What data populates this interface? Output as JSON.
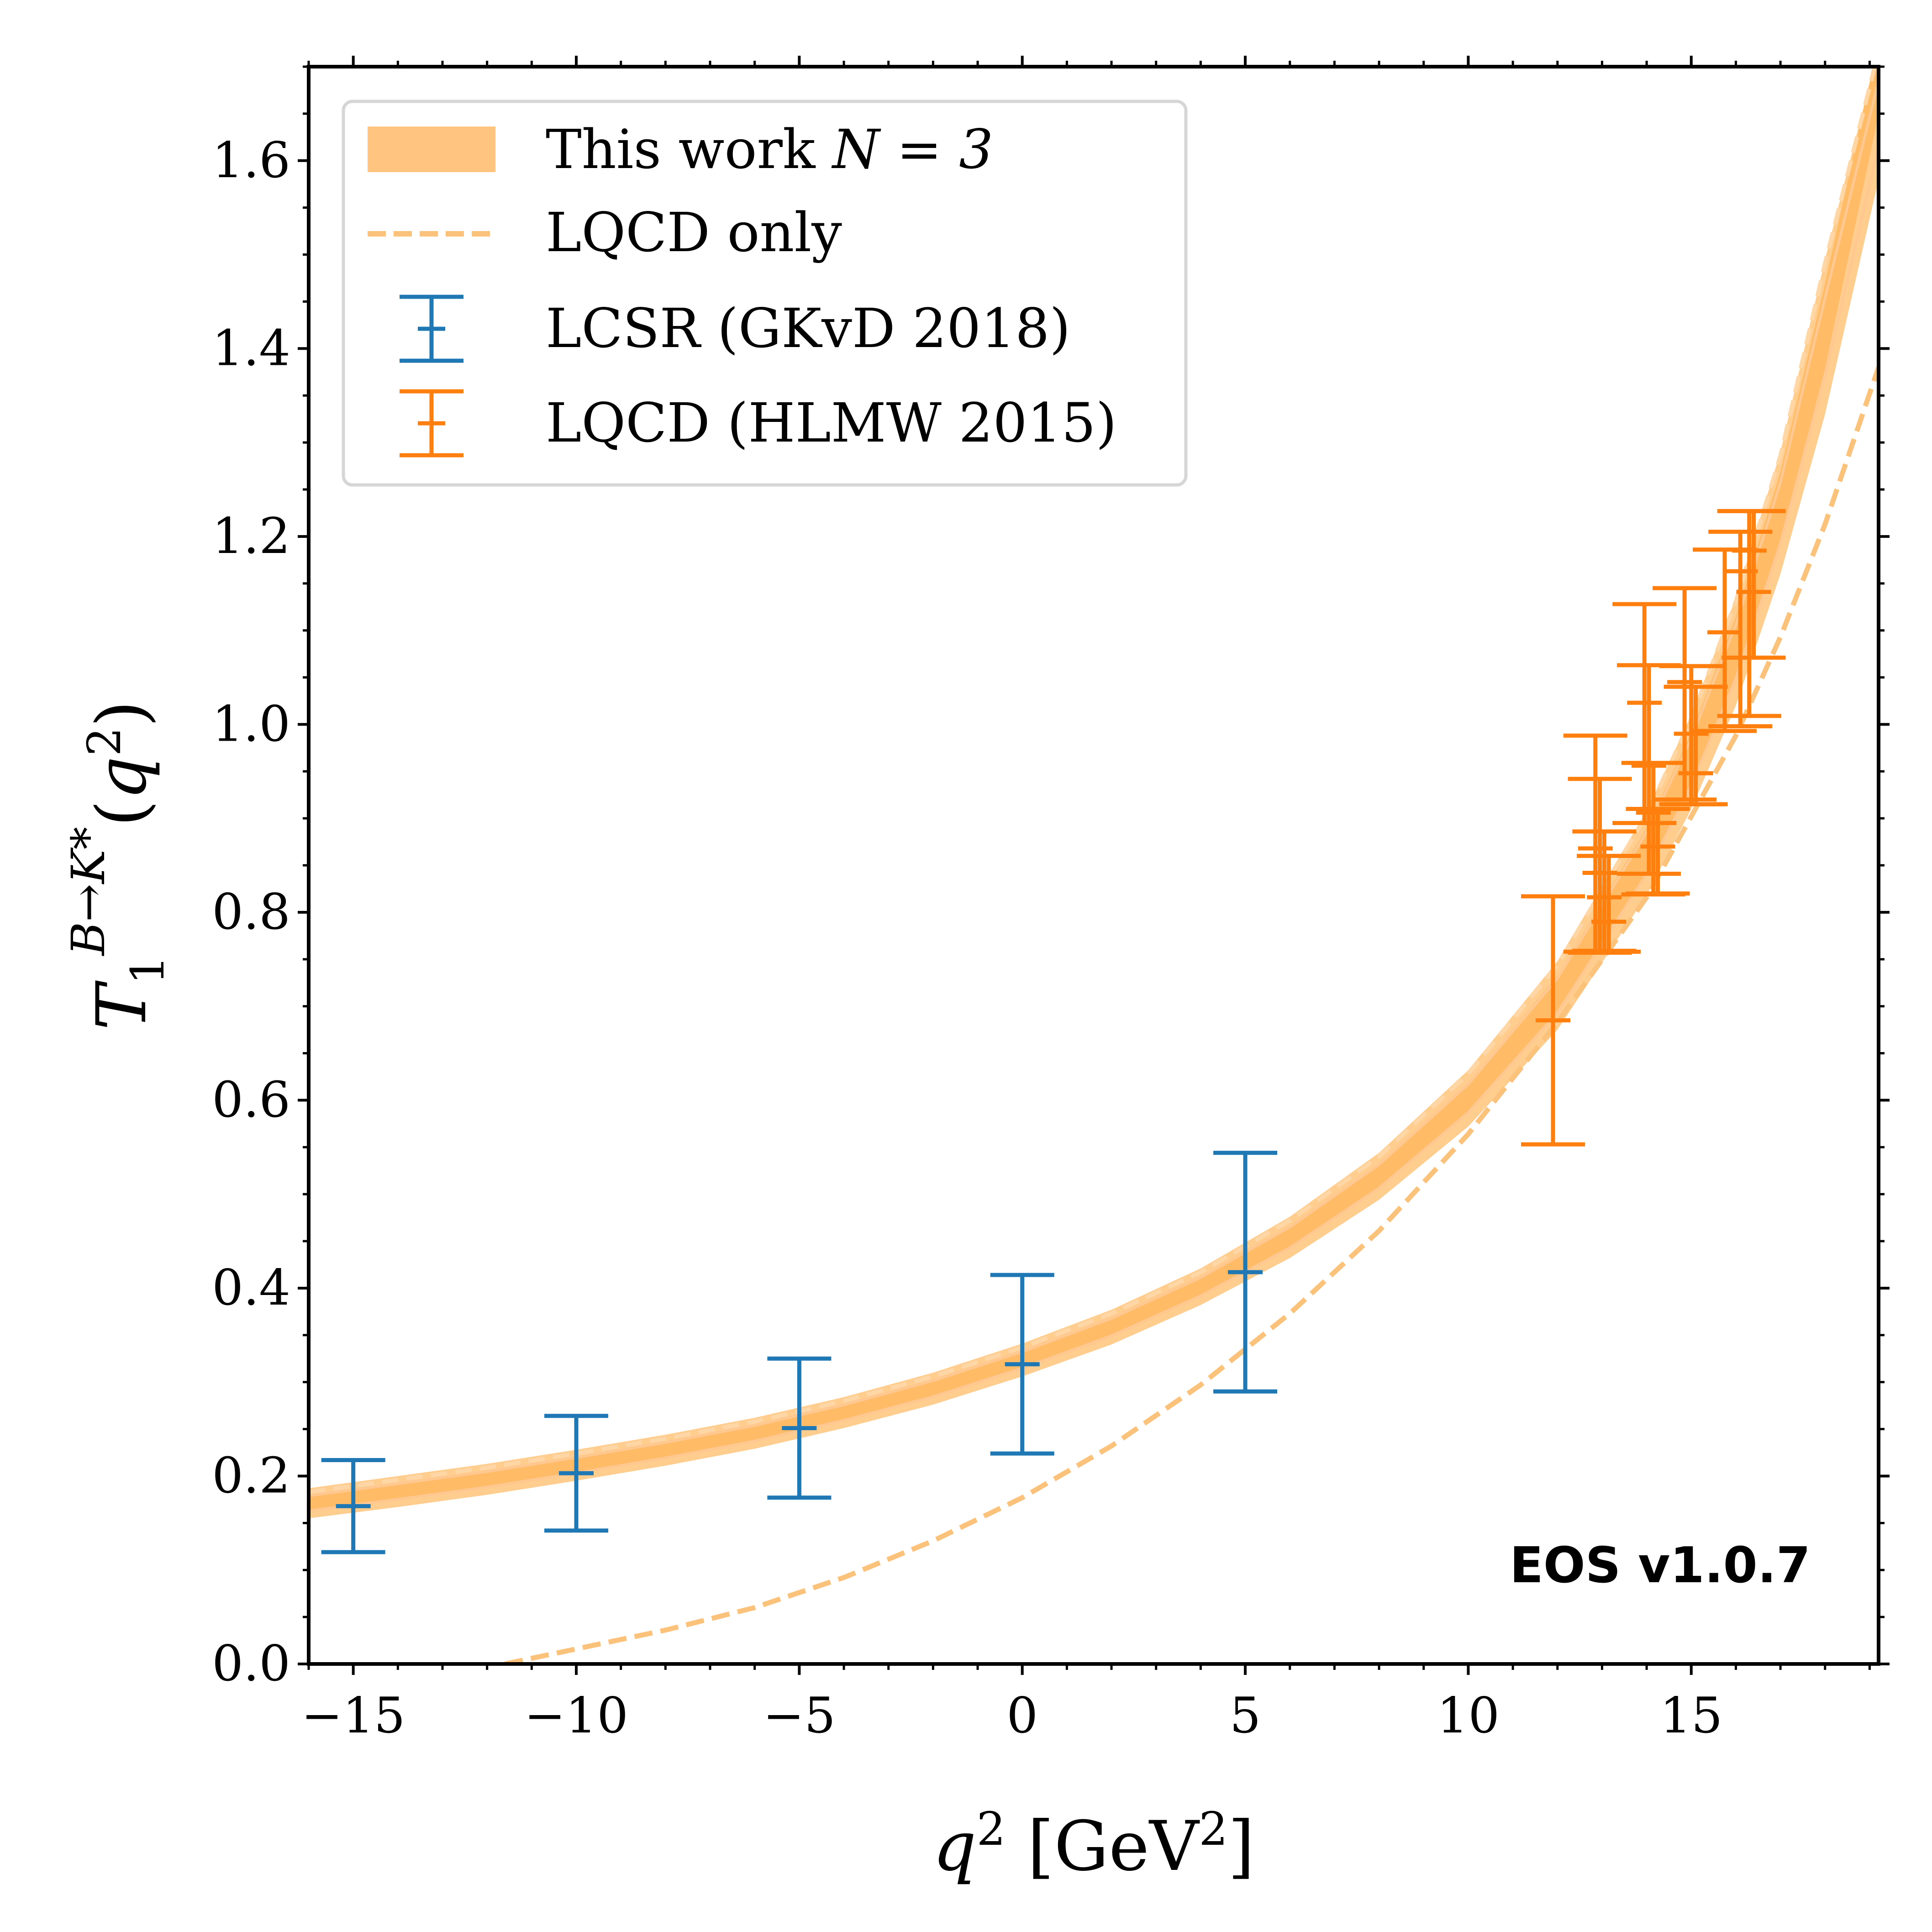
{
  "chart_data": {
    "type": "line",
    "xlabel": "q² [GeV²]",
    "ylabel": "T₁^{B→K*}(q²)",
    "xlim": [
      -16,
      19.2
    ],
    "ylim": [
      0,
      1.7
    ],
    "x_ticks": [
      -15,
      -10,
      -5,
      0,
      5,
      10,
      15
    ],
    "x_tick_labels": [
      "−15",
      "−10",
      "−5",
      "0",
      "5",
      "10",
      "15"
    ],
    "y_ticks": [
      0.0,
      0.2,
      0.4,
      0.6,
      0.8,
      1.0,
      1.2,
      1.4,
      1.6
    ],
    "y_tick_labels": [
      "0.0",
      "0.2",
      "0.4",
      "0.6",
      "0.8",
      "1.0",
      "1.2",
      "1.4",
      "1.6"
    ],
    "grid": false,
    "legend_position": "top-left",
    "watermark": "EOS v1.0.7",
    "colors": {
      "band": "#ffa533",
      "band_legend": "#ffc47f",
      "dashed": "#fbc27c",
      "lcsr": "#1f77b4",
      "lqcd": "#ff7f0e",
      "watermark": "#f4a07f"
    },
    "series": [
      {
        "name": "This work N = 3",
        "legend_label": "This work",
        "legend_math": "N = 3",
        "kind": "band",
        "x": [
          -16,
          -14,
          -12,
          -10,
          -8,
          -6,
          -4,
          -2,
          0,
          2,
          4,
          6,
          8,
          10,
          12,
          14,
          15,
          16,
          17,
          18,
          19.2
        ],
        "y_center": [
          0.172,
          0.184,
          0.197,
          0.211,
          0.227,
          0.245,
          0.267,
          0.292,
          0.322,
          0.357,
          0.4,
          0.453,
          0.519,
          0.603,
          0.714,
          0.867,
          0.967,
          1.089,
          1.243,
          1.438,
          1.735
        ],
        "y_lower": [
          0.155,
          0.167,
          0.18,
          0.195,
          0.211,
          0.229,
          0.251,
          0.276,
          0.306,
          0.34,
          0.382,
          0.432,
          0.494,
          0.572,
          0.675,
          0.818,
          0.91,
          1.02,
          1.16,
          1.33,
          1.58
        ],
        "y_upper": [
          0.187,
          0.2,
          0.213,
          0.228,
          0.244,
          0.262,
          0.284,
          0.31,
          0.341,
          0.377,
          0.421,
          0.476,
          0.544,
          0.632,
          0.748,
          0.908,
          1.01,
          1.135,
          1.29,
          1.495,
          1.72
        ]
      },
      {
        "name": "LQCD only",
        "kind": "dashed",
        "x": [
          -11.6,
          -11,
          -10,
          -8,
          -6,
          -4,
          -2,
          0,
          2,
          4,
          6,
          8,
          10,
          12,
          14,
          16,
          17,
          18,
          19.2
        ],
        "y": [
          0.0,
          0.006,
          0.016,
          0.036,
          0.06,
          0.092,
          0.131,
          0.177,
          0.232,
          0.297,
          0.373,
          0.461,
          0.564,
          0.683,
          0.816,
          0.988,
          1.093,
          1.213,
          1.38
        ]
      },
      {
        "name": "LCSR (GKvD 2018)",
        "kind": "errorbar",
        "x": [
          -15,
          -10,
          -5,
          0,
          5
        ],
        "y": [
          0.168,
          0.203,
          0.251,
          0.319,
          0.417
        ],
        "y_err_low": [
          0.049,
          0.061,
          0.074,
          0.095,
          0.127
        ],
        "y_err_high": [
          0.049,
          0.061,
          0.074,
          0.095,
          0.127
        ]
      },
      {
        "name": "LQCD (HLMW 2015)",
        "kind": "errorbar",
        "x": [
          11.9,
          12.85,
          12.95,
          13.05,
          13.15,
          13.95,
          14.05,
          14.15,
          14.25,
          14.85,
          15.0,
          15.1,
          15.75,
          16.1,
          16.3,
          16.4
        ],
        "y": [
          0.685,
          0.868,
          0.842,
          0.816,
          0.79,
          1.023,
          0.956,
          0.906,
          0.87,
          1.045,
          0.99,
          0.948,
          1.098,
          1.163,
          1.185,
          1.141
        ],
        "y_err_low": [
          0.132,
          0.11,
          0.085,
          0.057,
          0.032,
          0.128,
          0.115,
          0.087,
          0.05,
          0.125,
          0.075,
          0.033,
          0.105,
          0.165,
          0.176,
          0.07
        ],
        "y_err_high": [
          0.132,
          0.12,
          0.1,
          0.07,
          0.07,
          0.105,
          0.107,
          0.053,
          0.04,
          0.1,
          0.072,
          0.092,
          0.088,
          0.042,
          0.042,
          0.086
        ]
      }
    ]
  }
}
